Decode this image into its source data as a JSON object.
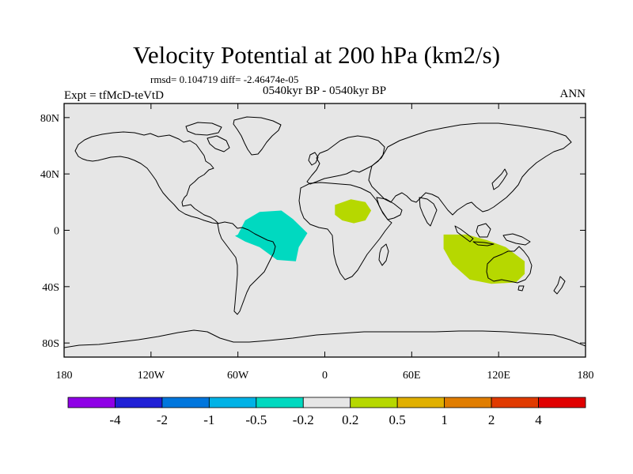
{
  "title": "Velocity Potential at 200 hPa (km2/s)",
  "stats": "rmsd= 0.104719 diff= -2.46474e-05",
  "subtitle": "0540kyr BP - 0540kyr BP",
  "experiment": "Expt = tfMcD-teVtD",
  "season": "ANN",
  "map": {
    "lon_range": [
      -180,
      180
    ],
    "lat_range": [
      -90,
      90
    ],
    "background_color": "#e6e6e6",
    "lat_ticks": [
      {
        "value": 80,
        "label": "80N"
      },
      {
        "value": 40,
        "label": "40N"
      },
      {
        "value": 0,
        "label": "0"
      },
      {
        "value": -40,
        "label": "40S"
      },
      {
        "value": -80,
        "label": "80S"
      }
    ],
    "lon_ticks": [
      {
        "value": -180,
        "label": "180"
      },
      {
        "value": -120,
        "label": "120W"
      },
      {
        "value": -60,
        "label": "60W"
      },
      {
        "value": 0,
        "label": "0"
      },
      {
        "value": 60,
        "label": "60E"
      },
      {
        "value": 120,
        "label": "120E"
      },
      {
        "value": 180,
        "label": "180"
      }
    ],
    "anomaly_regions": [
      {
        "name": "South America / tropical Atlantic",
        "level": "-0.5 to -0.2",
        "color": "#00d9c0",
        "outline": [
          [
            -60,
            -3
          ],
          [
            -55,
            7
          ],
          [
            -45,
            13
          ],
          [
            -30,
            14
          ],
          [
            -22,
            8
          ],
          [
            -12,
            -2
          ],
          [
            -18,
            -12
          ],
          [
            -20,
            -22
          ],
          [
            -33,
            -21
          ],
          [
            -45,
            -12
          ],
          [
            -55,
            -8
          ],
          [
            -62,
            -4
          ]
        ]
      },
      {
        "name": "Central Africa",
        "level": "0.2 to 0.5",
        "color": "#b6d800",
        "outline": [
          [
            7,
            18
          ],
          [
            18,
            22
          ],
          [
            28,
            20
          ],
          [
            32,
            14
          ],
          [
            28,
            7
          ],
          [
            20,
            5
          ],
          [
            12,
            7
          ],
          [
            7,
            11
          ]
        ]
      },
      {
        "name": "Indian Ocean / Australia",
        "level": "0.2 to 0.5",
        "color": "#b6d800",
        "outline": [
          [
            82,
            -3
          ],
          [
            98,
            -3
          ],
          [
            112,
            -7
          ],
          [
            125,
            -12
          ],
          [
            138,
            -22
          ],
          [
            138,
            -31
          ],
          [
            132,
            -37
          ],
          [
            115,
            -38
          ],
          [
            100,
            -35
          ],
          [
            88,
            -24
          ],
          [
            82,
            -13
          ]
        ]
      }
    ]
  },
  "colorbar": {
    "colors": [
      "#8f00e6",
      "#2020d6",
      "#0076dd",
      "#00b2e6",
      "#00d9c0",
      "#e6e6e6",
      "#b6d800",
      "#e0b000",
      "#e07d00",
      "#e03a00",
      "#e00000"
    ],
    "labels": [
      "-4",
      "-2",
      "-1",
      "-0.5",
      "-0.2",
      "0.2",
      "0.5",
      "1",
      "2",
      "4"
    ]
  }
}
